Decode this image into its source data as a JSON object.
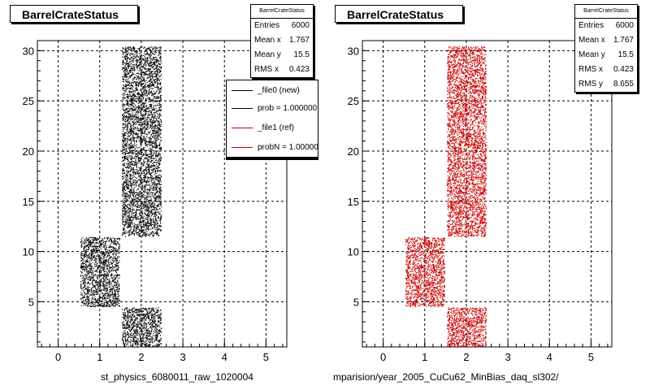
{
  "chart_data": [
    {
      "type": "scatter",
      "title": "BarrelCrateStatus",
      "xlabel": "st_physics_6080011_raw_1020004",
      "ylabel": "",
      "xlim": [
        -0.5,
        5.5
      ],
      "ylim": [
        0.5,
        31
      ],
      "xticks": [
        "0",
        "1",
        "2",
        "3",
        "4",
        "5"
      ],
      "yticks": [
        "5",
        "10",
        "15",
        "20",
        "25",
        "30"
      ],
      "grid": true,
      "marker_color": "#000000",
      "regions": [
        {
          "x": [
            0.5,
            1.5
          ],
          "y": [
            4.5,
            11.5
          ]
        },
        {
          "x": [
            1.5,
            2.5
          ],
          "y": [
            0.5,
            4.5
          ]
        },
        {
          "x": [
            1.5,
            2.5
          ],
          "y": [
            11.5,
            30.5
          ]
        }
      ],
      "stats": {
        "title": "BarrelCrateStatus",
        "rows": [
          {
            "label": "Entries",
            "value": "6000"
          },
          {
            "label": "Mean x",
            "value": "1.767"
          },
          {
            "label": "Mean y",
            "value": "15.5"
          },
          {
            "label": "RMS x",
            "value": "0.423"
          }
        ]
      },
      "legend": {
        "placement": "top-right",
        "entries": [
          {
            "label": "_file0 (new)",
            "color": "#000000"
          },
          {
            "label": "prob = 1.000000",
            "color": "#000000"
          },
          {
            "label": "_file1 (ref)",
            "color": "#cc0000"
          },
          {
            "label": "probN = 1.000000",
            "color": "#cc0000"
          }
        ]
      }
    },
    {
      "type": "scatter",
      "title": "BarrelCrateStatus",
      "xlabel": "mparision/year_2005_CuCu62_MinBias_daq_sl302/",
      "ylabel": "",
      "xlim": [
        -0.5,
        5.5
      ],
      "ylim": [
        0.5,
        31
      ],
      "xticks": [
        "0",
        "1",
        "2",
        "3",
        "4",
        "5"
      ],
      "yticks": [
        "5",
        "10",
        "15",
        "20",
        "25",
        "30"
      ],
      "grid": true,
      "marker_color": "#cc0000",
      "regions": [
        {
          "x": [
            0.5,
            1.5
          ],
          "y": [
            4.5,
            11.5
          ]
        },
        {
          "x": [
            1.5,
            2.5
          ],
          "y": [
            0.5,
            4.5
          ]
        },
        {
          "x": [
            1.5,
            2.5
          ],
          "y": [
            11.5,
            30.5
          ]
        }
      ],
      "stats": {
        "title": "BarrelCrateStatus",
        "rows": [
          {
            "label": "Entries",
            "value": "6000"
          },
          {
            "label": "Mean x",
            "value": "1.767"
          },
          {
            "label": "Mean y",
            "value": "15.5"
          },
          {
            "label": "RMS x",
            "value": "0.423"
          },
          {
            "label": "RMS y",
            "value": "8.655"
          }
        ]
      }
    }
  ]
}
